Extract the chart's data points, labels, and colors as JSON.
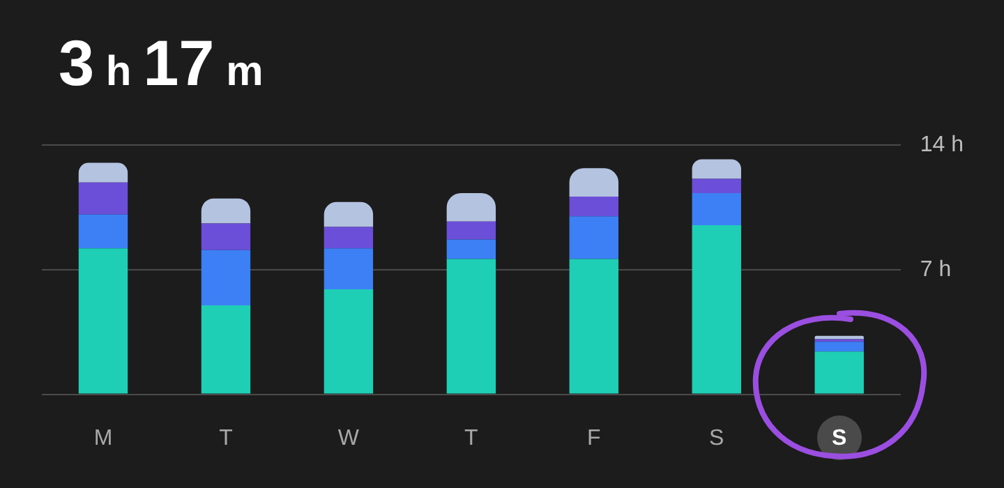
{
  "chart_data": {
    "type": "bar",
    "title": "3 h 17 m",
    "stacked": true,
    "categories": [
      "M",
      "T",
      "W",
      "T",
      "F",
      "S",
      "S"
    ],
    "series": [
      {
        "color": "#1ecfb5",
        "values": [
          8.2,
          5.0,
          5.9,
          7.6,
          7.6,
          9.5,
          2.4
        ]
      },
      {
        "color": "#3d7ff5",
        "values": [
          1.9,
          3.1,
          2.3,
          1.1,
          2.4,
          1.8,
          0.55
        ]
      },
      {
        "color": "#6c4fd8",
        "values": [
          1.8,
          1.5,
          1.2,
          1.0,
          1.1,
          0.8,
          0.15
        ]
      },
      {
        "color": "#b4c3e0",
        "values": [
          1.1,
          1.4,
          1.4,
          1.6,
          1.6,
          1.1,
          0.18
        ]
      }
    ],
    "ylim": [
      0,
      14
    ],
    "yticks": [
      {
        "value": 0,
        "label": null
      },
      {
        "value": 7,
        "label": "7 h"
      },
      {
        "value": 14,
        "label": "14 h"
      }
    ],
    "grid": "y",
    "legend": false
  }
}
